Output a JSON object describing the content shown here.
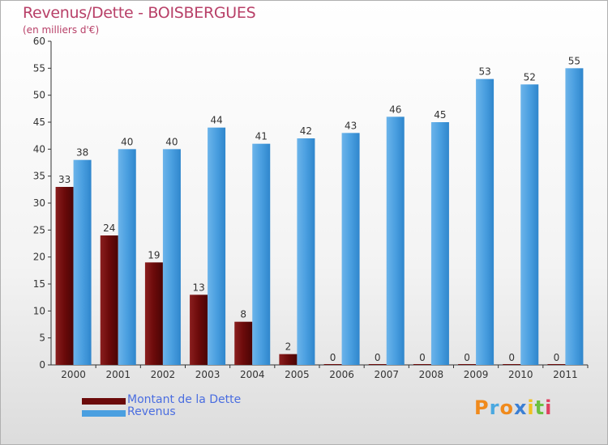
{
  "title": "Revenus/Dette - BOISBERGUES",
  "subtitle": "(en milliers d'€)",
  "legend": [
    {
      "label": "Montant de la Dette",
      "color": "#6b0a0a"
    },
    {
      "label": "Revenus",
      "color": "#4a9fe0"
    }
  ],
  "logo": {
    "text": "Proxiti",
    "letters": [
      "P",
      "r",
      "o",
      "x",
      "i",
      "t",
      "i"
    ],
    "colors": [
      "#f08a1c",
      "#4aa8e0",
      "#f08a1c",
      "#3b7fd4",
      "#f0c020",
      "#6cc040",
      "#e04060"
    ]
  },
  "chart_data": {
    "type": "bar",
    "title": "Revenus/Dette - BOISBERGUES",
    "ylabel": "(en milliers d'€)",
    "categories": [
      "2000",
      "2001",
      "2002",
      "2003",
      "2004",
      "2005",
      "2006",
      "2007",
      "2008",
      "2009",
      "2010",
      "2011"
    ],
    "series": [
      {
        "name": "Montant de la Dette",
        "color": "#6b0a0a",
        "values": [
          33,
          24,
          19,
          13,
          8,
          2,
          0,
          0,
          0,
          0,
          0,
          0
        ]
      },
      {
        "name": "Revenus",
        "color": "#4a9fe0",
        "values": [
          38,
          40,
          40,
          44,
          41,
          42,
          43,
          46,
          45,
          53,
          52,
          55
        ]
      }
    ],
    "ylim": [
      0,
      60
    ],
    "yticks": [
      0,
      5,
      10,
      15,
      20,
      25,
      30,
      35,
      40,
      45,
      50,
      55,
      60
    ],
    "grid": false,
    "legend_position": "bottom-left"
  }
}
